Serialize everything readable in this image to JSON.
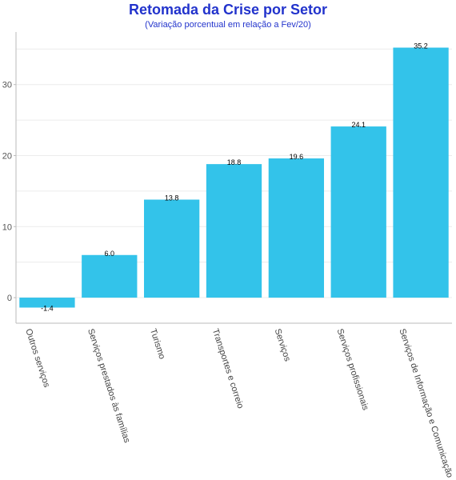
{
  "chart_data": {
    "type": "bar",
    "title": "Retomada da Crise por Setor",
    "subtitle": "(Variação porcentual em relação a Fev/20)",
    "categories": [
      "Outros serviços",
      "Serviços prestados às famílias",
      "Turismo",
      "Transportes e correio",
      "Serviços",
      "Serviços profissionais",
      "Serviços de Informação e Comunicação"
    ],
    "values": [
      -1.4,
      6.0,
      13.8,
      18.8,
      19.6,
      24.1,
      35.2
    ],
    "data_labels": [
      "-1.4",
      "6.0",
      "13.8",
      "18.8",
      "19.6",
      "24.1",
      "35.2"
    ],
    "ylim": [
      -3.6,
      37.4
    ],
    "yticks": [
      0,
      10,
      20,
      30
    ],
    "xlabel": "",
    "ylabel": "",
    "grid": true,
    "colors": {
      "bar": "#33c3ea",
      "title": "#2233cc",
      "grid": "#ececec",
      "axis": "#bbbbbb"
    }
  }
}
